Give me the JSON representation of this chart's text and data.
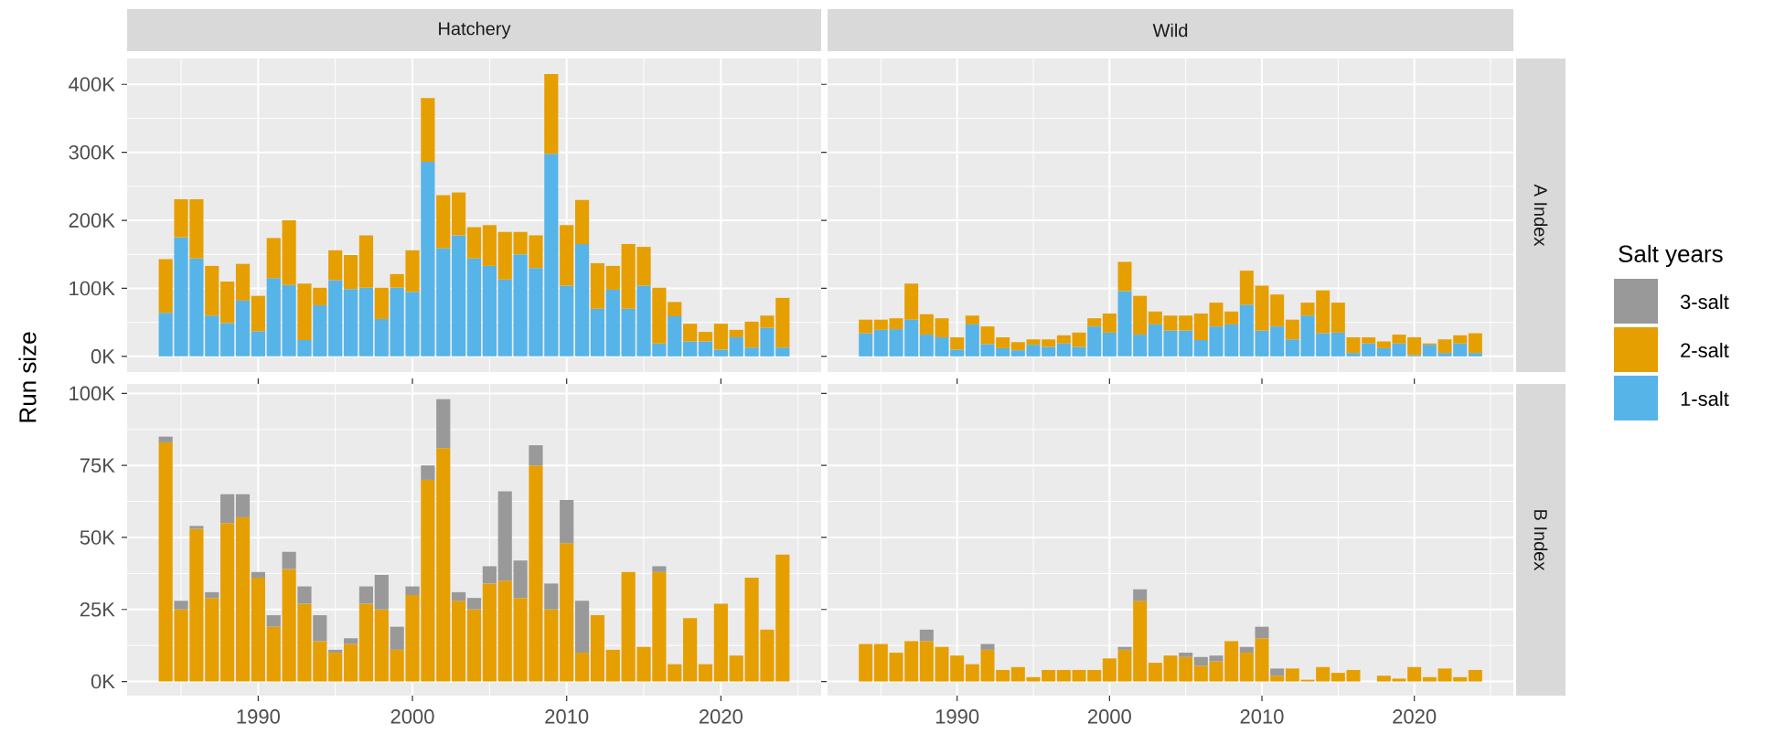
{
  "chart_data": [
    {
      "type": "bar",
      "title": "Hatchery",
      "ylabel": "Run size",
      "stacked": true,
      "grid": true,
      "tick_labels": "y",
      "legend": "right",
      "x": [
        1984,
        1985,
        1986,
        1987,
        1988,
        1989,
        1990,
        1991,
        1992,
        1993,
        1994,
        1995,
        1996,
        1997,
        1998,
        1999,
        2000,
        2001,
        2002,
        2003,
        2004,
        2005,
        2006,
        2007,
        2008,
        2009,
        2010,
        2011,
        2012,
        2013,
        2014,
        2015,
        2016,
        2017,
        2018,
        2019,
        2020,
        2021,
        2022,
        2023,
        2024
      ],
      "xlim": [
        1981.5,
        2026.5
      ],
      "xticks": [
        1990,
        2000,
        2010,
        2020
      ],
      "ylim": [
        -23000,
        438000
      ],
      "yticks": [
        {
          "value": 0,
          "label": "0K"
        },
        {
          "value": 100000,
          "label": "100K"
        },
        {
          "value": 200000,
          "label": "200K"
        },
        {
          "value": 300000,
          "label": "300K"
        },
        {
          "value": 400000,
          "label": "400K"
        }
      ],
      "series": [
        {
          "name": "1-salt",
          "color": "#56b4e9",
          "values": [
            64000,
            175000,
            144000,
            60000,
            49000,
            82000,
            37000,
            115000,
            105000,
            24000,
            75000,
            112000,
            99000,
            101000,
            55000,
            101000,
            95000,
            286000,
            159000,
            178000,
            144000,
            133000,
            113000,
            150000,
            130000,
            298000,
            104000,
            165000,
            70000,
            98000,
            70000,
            104000,
            19000,
            59000,
            22000,
            22000,
            10000,
            28000,
            13000,
            42000,
            13000
          ]
        },
        {
          "name": "2-salt",
          "color": "#e69f00",
          "values": [
            79000,
            56000,
            87000,
            73000,
            61000,
            54000,
            52000,
            59000,
            95000,
            83000,
            26000,
            44000,
            50000,
            77000,
            46000,
            20000,
            61000,
            94000,
            78000,
            63000,
            46000,
            60000,
            70000,
            33000,
            48000,
            117000,
            89000,
            65000,
            67000,
            35000,
            95000,
            57000,
            82000,
            21000,
            26000,
            14000,
            38000,
            11000,
            38000,
            18000,
            73000
          ]
        }
      ]
    },
    {
      "type": "bar",
      "title": "Wild",
      "y2label": "A Index",
      "stacked": true,
      "grid": true,
      "tick_labels": false,
      "legend": "right",
      "legend_title": "Salt years",
      "x": [
        1984,
        1985,
        1986,
        1987,
        1988,
        1989,
        1990,
        1991,
        1992,
        1993,
        1994,
        1995,
        1996,
        1997,
        1998,
        1999,
        2000,
        2001,
        2002,
        2003,
        2004,
        2005,
        2006,
        2007,
        2008,
        2009,
        2010,
        2011,
        2012,
        2013,
        2014,
        2015,
        2016,
        2017,
        2018,
        2019,
        2020,
        2021,
        2022,
        2023,
        2024
      ],
      "xlim": [
        1981.5,
        2026.5
      ],
      "xticks": [
        1990,
        2000,
        2010,
        2020
      ],
      "ylim": [
        -23000,
        438000
      ],
      "yticks": [
        {
          "value": 0,
          "label": null
        },
        {
          "value": 100000,
          "label": null
        },
        {
          "value": 200000,
          "label": null
        },
        {
          "value": 300000,
          "label": null
        },
        {
          "value": 400000,
          "label": null
        }
      ],
      "series": [
        {
          "color": "#56b4e9",
          "values": [
            34000,
            39000,
            40000,
            54000,
            32000,
            28000,
            10000,
            47000,
            18000,
            12000,
            9000,
            17000,
            14000,
            19000,
            14000,
            44000,
            35000,
            96000,
            32000,
            47000,
            38000,
            38000,
            24000,
            44000,
            47000,
            76000,
            38000,
            44000,
            25000,
            60000,
            34000,
            35000,
            5000,
            19000,
            12000,
            19000,
            2000,
            17000,
            5000,
            19000,
            5000
          ]
        },
        {
          "color": "#e69f00",
          "values": [
            20000,
            15000,
            16000,
            53000,
            30000,
            28000,
            18000,
            13000,
            26000,
            16000,
            12000,
            8000,
            11000,
            12000,
            21000,
            12000,
            28000,
            43000,
            57000,
            19000,
            22000,
            22000,
            39000,
            35000,
            19000,
            50000,
            66000,
            47000,
            29000,
            19000,
            63000,
            44000,
            23000,
            9000,
            10000,
            13000,
            26000,
            2000,
            20000,
            12000,
            29000
          ]
        }
      ]
    },
    {
      "type": "bar",
      "stacked": true,
      "grid": true,
      "legend": "right",
      "x": [
        1984,
        1985,
        1986,
        1987,
        1988,
        1989,
        1990,
        1991,
        1992,
        1993,
        1994,
        1995,
        1996,
        1997,
        1998,
        1999,
        2000,
        2001,
        2002,
        2003,
        2004,
        2005,
        2006,
        2007,
        2008,
        2009,
        2010,
        2011,
        2012,
        2013,
        2014,
        2015,
        2016,
        2017,
        2018,
        2019,
        2020,
        2021,
        2022,
        2023,
        2024
      ],
      "xlim": [
        1981.5,
        2026.5
      ],
      "xticks": [
        1990,
        2000,
        2010,
        2020
      ],
      "ylim": [
        -4900,
        103300
      ],
      "yticks": [
        {
          "value": 0,
          "label": "0K"
        },
        {
          "value": 25000,
          "label": "25K"
        },
        {
          "value": 50000,
          "label": "50K"
        },
        {
          "value": 75000,
          "label": "75K"
        },
        {
          "value": 100000,
          "label": "100K"
        }
      ],
      "series": [
        {
          "color": "#e69f00",
          "values": [
            83000,
            25000,
            53000,
            29000,
            55000,
            57000,
            36000,
            19000,
            39000,
            27000,
            14000,
            10000,
            13000,
            27000,
            25000,
            11000,
            30000,
            70000,
            81000,
            28000,
            25000,
            34000,
            35000,
            29000,
            75000,
            25000,
            48000,
            10000,
            23000,
            11000,
            38000,
            12000,
            38000,
            6000,
            22000,
            6000,
            27000,
            9000,
            36000,
            18000,
            44000
          ]
        },
        {
          "name": "3-salt",
          "color": "#999999",
          "values": [
            2000,
            3000,
            1000,
            2000,
            10000,
            8000,
            2000,
            4000,
            6000,
            6000,
            9000,
            1000,
            2000,
            6000,
            12000,
            8000,
            3000,
            5000,
            17000,
            3000,
            4000,
            6000,
            31000,
            13000,
            7000,
            9000,
            15000,
            18000,
            null,
            null,
            null,
            null,
            2000,
            null,
            null,
            null,
            null,
            null,
            null,
            null,
            null
          ]
        }
      ]
    },
    {
      "type": "bar",
      "y2label": "B Index",
      "stacked": true,
      "grid": true,
      "tick_labels": "x",
      "x": [
        1984,
        1985,
        1986,
        1987,
        1988,
        1989,
        1990,
        1991,
        1992,
        1993,
        1994,
        1995,
        1996,
        1997,
        1998,
        1999,
        2000,
        2001,
        2002,
        2003,
        2004,
        2005,
        2006,
        2007,
        2008,
        2009,
        2010,
        2011,
        2012,
        2013,
        2014,
        2015,
        2016,
        2017,
        2018,
        2019,
        2020,
        2021,
        2022,
        2023,
        2024
      ],
      "xlim": [
        1981.5,
        2026.5
      ],
      "xticks": [
        1990,
        2000,
        2010,
        2020
      ],
      "ylim": [
        -4900,
        103300
      ],
      "yticks": [
        {
          "value": 0,
          "label": null
        },
        {
          "value": 25000,
          "label": null
        },
        {
          "value": 50000,
          "label": null
        },
        {
          "value": 75000,
          "label": null
        },
        {
          "value": 100000,
          "label": null
        }
      ],
      "series": [
        {
          "color": "#e69f00",
          "values": [
            13000,
            13000,
            10000,
            14000,
            14000,
            12000,
            9000,
            6000,
            11000,
            4000,
            5000,
            1500,
            4000,
            4000,
            4000,
            4000,
            8000,
            11000,
            28000,
            6500,
            9000,
            8500,
            5500,
            7000,
            14000,
            10000,
            15000,
            2000,
            4500,
            600,
            5000,
            3000,
            4000,
            null,
            2000,
            1000,
            5000,
            1500,
            4500,
            1500,
            4000
          ]
        },
        {
          "color": "#999999",
          "values": [
            null,
            null,
            null,
            null,
            4000,
            null,
            null,
            null,
            2000,
            null,
            null,
            null,
            null,
            null,
            null,
            null,
            null,
            1000,
            4000,
            null,
            null,
            1500,
            3000,
            2000,
            null,
            2000,
            4000,
            2500,
            null,
            null,
            null,
            null,
            null,
            null,
            null,
            null,
            null,
            null,
            null,
            null,
            null
          ]
        }
      ]
    }
  ]
}
